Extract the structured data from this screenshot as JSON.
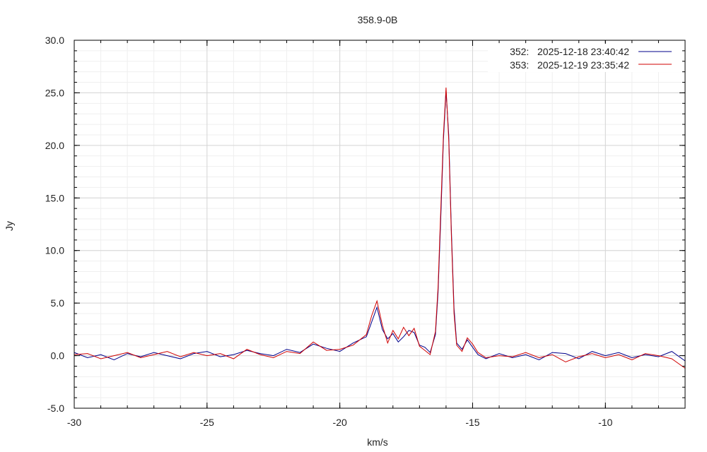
{
  "chart_data": {
    "type": "line",
    "title": "358.9-0B",
    "xlabel": "km/s",
    "ylabel": "Jy",
    "xlim": [
      -30,
      -7
    ],
    "ylim": [
      -5,
      30
    ],
    "x_ticks": [
      -30,
      -25,
      -20,
      -15,
      -10
    ],
    "x_tick_labels": [
      "-30",
      "-25",
      "-20",
      "-15",
      "-10"
    ],
    "y_ticks": [
      -5,
      0,
      5,
      10,
      15,
      20,
      25,
      30
    ],
    "y_tick_labels": [
      "-5.0",
      "0.0",
      "5.0",
      "10.0",
      "15.0",
      "20.0",
      "25.0",
      "30.0"
    ],
    "grid": true,
    "legend_position": "top-right",
    "series": [
      {
        "name": "352:   2025-12-18 23:40:42",
        "color": "#00008b",
        "x": [
          -30,
          -29.5,
          -29,
          -28.5,
          -28,
          -27.5,
          -27,
          -26.5,
          -26,
          -25.5,
          -25,
          -24.5,
          -24,
          -23.5,
          -23,
          -22.5,
          -22,
          -21.5,
          -21,
          -20.5,
          -20,
          -19.5,
          -19,
          -18.8,
          -18.6,
          -18.4,
          -18.2,
          -18,
          -17.8,
          -17.6,
          -17.4,
          -17.2,
          -17,
          -16.8,
          -16.6,
          -16.4,
          -16.3,
          -16.2,
          -16.1,
          -16.0,
          -15.9,
          -15.8,
          -15.7,
          -15.6,
          -15.4,
          -15.2,
          -15,
          -14.8,
          -14.5,
          -14,
          -13.5,
          -13,
          -12.5,
          -12,
          -11.5,
          -11,
          -10.5,
          -10,
          -9.5,
          -9,
          -8.5,
          -8,
          -7.5,
          -7
        ],
        "y": [
          0.3,
          -0.2,
          0.1,
          -0.4,
          0.2,
          -0.1,
          0.3,
          0.0,
          -0.3,
          0.2,
          0.4,
          -0.1,
          0.1,
          0.5,
          0.2,
          0.0,
          0.6,
          0.3,
          1.1,
          0.7,
          0.4,
          1.2,
          1.8,
          3.2,
          4.6,
          2.5,
          1.6,
          2.1,
          1.3,
          1.8,
          2.4,
          2.2,
          1.0,
          0.8,
          0.3,
          2.0,
          6.0,
          13.0,
          20.5,
          25.2,
          21.0,
          12.0,
          4.5,
          1.2,
          0.6,
          1.5,
          0.8,
          0.1,
          -0.3,
          0.2,
          -0.2,
          0.1,
          -0.4,
          0.3,
          0.2,
          -0.3,
          0.4,
          0.0,
          0.3,
          -0.2,
          0.1,
          -0.1,
          0.4,
          -0.5
        ]
      },
      {
        "name": "353:   2025-12-19 23:35:42",
        "color": "#d00000",
        "x": [
          -30,
          -29.5,
          -29,
          -28.5,
          -28,
          -27.5,
          -27,
          -26.5,
          -26,
          -25.5,
          -25,
          -24.5,
          -24,
          -23.5,
          -23,
          -22.5,
          -22,
          -21.5,
          -21,
          -20.5,
          -20,
          -19.5,
          -19,
          -18.8,
          -18.6,
          -18.4,
          -18.2,
          -18,
          -17.8,
          -17.6,
          -17.4,
          -17.2,
          -17,
          -16.8,
          -16.6,
          -16.4,
          -16.3,
          -16.2,
          -16.1,
          -16.0,
          -15.9,
          -15.8,
          -15.7,
          -15.6,
          -15.4,
          -15.2,
          -15,
          -14.8,
          -14.5,
          -14,
          -13.5,
          -13,
          -12.5,
          -12,
          -11.5,
          -11,
          -10.5,
          -10,
          -9.5,
          -9,
          -8.5,
          -8,
          -7.5,
          -7
        ],
        "y": [
          0.1,
          0.2,
          -0.3,
          0.0,
          0.3,
          -0.2,
          0.1,
          0.4,
          -0.1,
          0.3,
          0.0,
          0.2,
          -0.3,
          0.6,
          0.1,
          -0.2,
          0.4,
          0.2,
          1.3,
          0.5,
          0.6,
          1.0,
          2.0,
          3.8,
          5.2,
          2.9,
          1.2,
          2.4,
          1.6,
          2.7,
          1.9,
          2.6,
          0.9,
          0.5,
          0.1,
          2.3,
          6.5,
          13.8,
          21.0,
          25.5,
          20.5,
          11.5,
          4.0,
          1.0,
          0.4,
          1.7,
          1.1,
          0.3,
          -0.2,
          0.0,
          -0.1,
          0.3,
          -0.2,
          0.1,
          -0.6,
          -0.1,
          0.2,
          -0.2,
          0.1,
          -0.4,
          0.2,
          0.0,
          -0.3,
          -1.2
        ]
      }
    ]
  }
}
